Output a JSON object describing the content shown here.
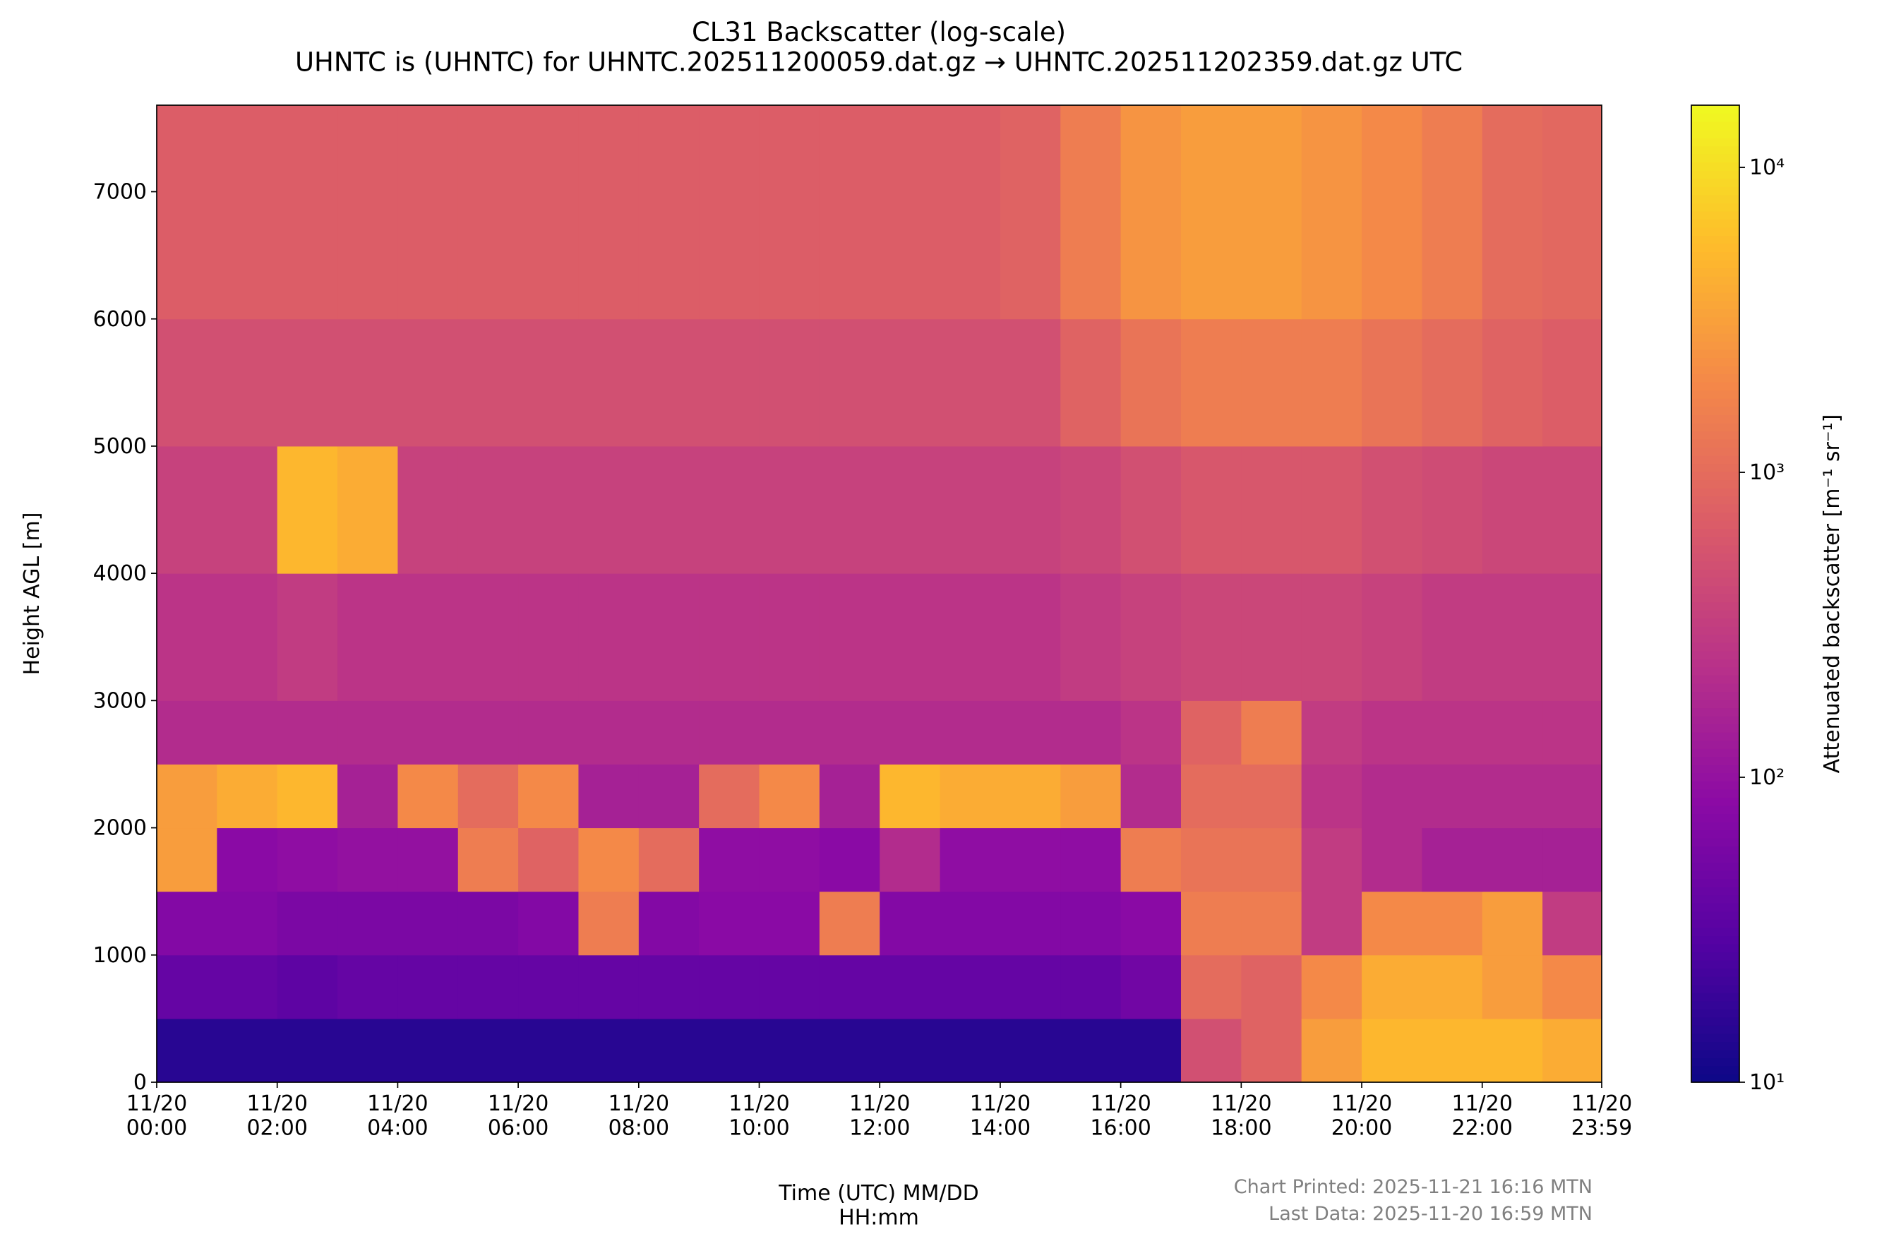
{
  "chart_data": {
    "type": "heatmap",
    "title": "CL31 Backscatter (log-scale)\nUHNTC is (UHNTC) for UHNTC.202511200059.dat.gz → UHNTC.202511202359.dat.gz UTC",
    "xlabel": "Time (UTC) MM/DD\nHH:mm",
    "ylabel": "Height AGL [m]",
    "colorbar_label": "Attenuated backscatter [m⁻¹ sr⁻¹]",
    "footer": [
      "Chart Printed: 2025-11-21 16:16 MTN",
      "Last Data: 2025-11-20 16:59 MTN"
    ],
    "colormap": "plasma",
    "color_scale": "log",
    "clim": [
      10,
      16000
    ],
    "cticks": [
      {
        "value": 10,
        "label": "10¹"
      },
      {
        "value": 100,
        "label": "10²"
      },
      {
        "value": 1000,
        "label": "10³"
      },
      {
        "value": 10000,
        "label": "10⁴"
      }
    ],
    "xlim": [
      0,
      23.983
    ],
    "xticks": [
      {
        "value": 0,
        "label": "11/20\n00:00"
      },
      {
        "value": 2,
        "label": "11/20\n02:00"
      },
      {
        "value": 4,
        "label": "11/20\n04:00"
      },
      {
        "value": 6,
        "label": "11/20\n06:00"
      },
      {
        "value": 8,
        "label": "11/20\n08:00"
      },
      {
        "value": 10,
        "label": "11/20\n10:00"
      },
      {
        "value": 12,
        "label": "11/20\n12:00"
      },
      {
        "value": 14,
        "label": "11/20\n14:00"
      },
      {
        "value": 16,
        "label": "11/20\n16:00"
      },
      {
        "value": 18,
        "label": "11/20\n18:00"
      },
      {
        "value": 20,
        "label": "11/20\n20:00"
      },
      {
        "value": 22,
        "label": "11/20\n22:00"
      },
      {
        "value": 23.983,
        "label": "11/20\n23:59"
      }
    ],
    "ylim": [
      0,
      7680
    ],
    "yticks": [
      0,
      1000,
      2000,
      3000,
      4000,
      5000,
      6000,
      7000
    ],
    "x_edges": [
      0,
      1,
      2,
      3,
      4,
      5,
      6,
      7,
      8,
      9,
      10,
      11,
      12,
      13,
      14,
      15,
      16,
      17,
      18,
      19,
      20,
      21,
      22,
      23,
      23.983
    ],
    "y_edges": [
      0,
      500,
      1000,
      1500,
      2000,
      2500,
      3000,
      4000,
      5000,
      6000,
      7680
    ],
    "z": [
      [
        15,
        15,
        15,
        15,
        15,
        15,
        15,
        15,
        15,
        15,
        15,
        15,
        15,
        15,
        15,
        15,
        15,
        500,
        800,
        3000,
        5000,
        5000,
        5000,
        4000
      ],
      [
        40,
        40,
        35,
        40,
        40,
        40,
        40,
        40,
        40,
        40,
        40,
        40,
        40,
        40,
        40,
        40,
        50,
        1000,
        800,
        2000,
        4000,
        4000,
        3000,
        2000
      ],
      [
        70,
        70,
        60,
        60,
        60,
        60,
        70,
        1500,
        70,
        80,
        80,
        1500,
        70,
        70,
        70,
        70,
        80,
        1500,
        1500,
        300,
        2000,
        2000,
        3000,
        300
      ],
      [
        3000,
        80,
        90,
        100,
        100,
        1500,
        800,
        2000,
        1000,
        90,
        90,
        80,
        200,
        90,
        90,
        90,
        1500,
        1200,
        1200,
        300,
        200,
        150,
        150,
        150
      ],
      [
        3000,
        4000,
        5000,
        150,
        2000,
        1000,
        2000,
        150,
        150,
        1000,
        2000,
        150,
        5000,
        4000,
        4000,
        3000,
        200,
        1000,
        1000,
        250,
        200,
        200,
        200,
        200
      ],
      [
        200,
        200,
        200,
        200,
        200,
        200,
        200,
        200,
        200,
        200,
        200,
        200,
        200,
        200,
        200,
        200,
        250,
        800,
        1500,
        300,
        250,
        250,
        250,
        250
      ],
      [
        250,
        250,
        300,
        250,
        250,
        250,
        250,
        250,
        250,
        250,
        250,
        250,
        250,
        250,
        250,
        300,
        350,
        400,
        400,
        400,
        350,
        300,
        300,
        300
      ],
      [
        350,
        350,
        5000,
        4000,
        350,
        350,
        350,
        350,
        350,
        350,
        350,
        350,
        350,
        350,
        350,
        400,
        500,
        600,
        600,
        600,
        500,
        450,
        400,
        400
      ],
      [
        500,
        500,
        500,
        500,
        500,
        500,
        500,
        500,
        500,
        500,
        500,
        500,
        500,
        500,
        500,
        800,
        1200,
        1500,
        1500,
        1500,
        1200,
        1000,
        800,
        700
      ],
      [
        700,
        700,
        700,
        700,
        700,
        700,
        700,
        700,
        700,
        700,
        700,
        700,
        700,
        700,
        800,
        1500,
        2500,
        3000,
        3000,
        2500,
        2000,
        1500,
        1000,
        900
      ]
    ]
  }
}
